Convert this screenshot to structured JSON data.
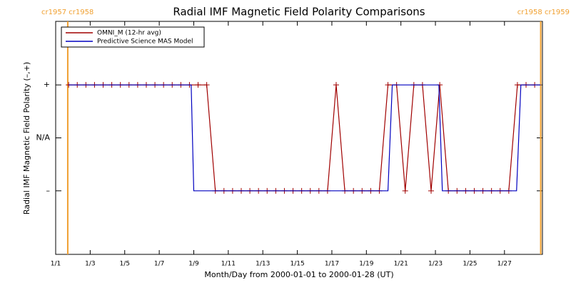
{
  "chart_data": {
    "type": "line",
    "title": "Radial IMF Magnetic Field Polarity Comparisons",
    "xlabel": "Month/Day from 2000-01-01 to 2000-01-28 (UT)",
    "ylabel": "Radial IMF Magnetic Field Polarity (–,+)",
    "xlim": [
      1,
      29.2
    ],
    "xticks": [
      {
        "value": 1,
        "label": "1/1"
      },
      {
        "value": 3,
        "label": "1/3"
      },
      {
        "value": 5,
        "label": "1/5"
      },
      {
        "value": 7,
        "label": "1/7"
      },
      {
        "value": 9,
        "label": "1/9"
      },
      {
        "value": 11,
        "label": "1/11"
      },
      {
        "value": 13,
        "label": "1/13"
      },
      {
        "value": 15,
        "label": "1/15"
      },
      {
        "value": 17,
        "label": "1/17"
      },
      {
        "value": 19,
        "label": "1/19"
      },
      {
        "value": 21,
        "label": "1/21"
      },
      {
        "value": 23,
        "label": "1/23"
      },
      {
        "value": 25,
        "label": "1/25"
      },
      {
        "value": 27,
        "label": "1/27"
      }
    ],
    "ylim": [
      -2.2,
      2.2
    ],
    "yticks": [
      {
        "value": 1,
        "label": "+"
      },
      {
        "value": 0,
        "label": "N/A"
      },
      {
        "value": -1,
        "label": "–"
      }
    ],
    "boundaries": [
      {
        "x": 1.7,
        "label": "cr1957 cr1958"
      },
      {
        "x": 29.1,
        "label": "cr1958 cr1959"
      }
    ],
    "boundary_color": "#f0a030",
    "legend": "upper left",
    "series": [
      {
        "name": "OMNI_M (12-hr avg)",
        "color": "#a00000",
        "marker": "+",
        "x": [
          1.75,
          2.25,
          2.75,
          3.25,
          3.75,
          4.25,
          4.75,
          5.25,
          5.75,
          6.25,
          6.75,
          7.25,
          7.75,
          8.25,
          8.75,
          9.25,
          9.75,
          10.25,
          10.75,
          11.25,
          11.75,
          12.25,
          12.75,
          13.25,
          13.75,
          14.25,
          14.75,
          15.25,
          15.75,
          16.25,
          16.75,
          17.25,
          17.75,
          18.25,
          18.75,
          19.25,
          19.75,
          20.25,
          20.75,
          21.25,
          21.75,
          22.25,
          22.75,
          23.25,
          23.75,
          24.25,
          24.75,
          25.25,
          25.75,
          26.25,
          26.75,
          27.25,
          27.75,
          28.25,
          28.75
        ],
        "values": [
          1,
          1,
          1,
          1,
          1,
          1,
          1,
          1,
          1,
          1,
          1,
          1,
          1,
          1,
          1,
          1,
          1,
          -1,
          -1,
          -1,
          -1,
          -1,
          -1,
          -1,
          -1,
          -1,
          -1,
          -1,
          -1,
          -1,
          -1,
          1,
          -1,
          -1,
          -1,
          -1,
          -1,
          1,
          1,
          -1,
          1,
          1,
          -1,
          1,
          -1,
          -1,
          -1,
          -1,
          -1,
          -1,
          -1,
          -1,
          1,
          1,
          1
        ]
      },
      {
        "name": "Predictive Science MAS Model",
        "color": "#0000c0",
        "x": [
          1.75,
          8.85,
          9.0,
          20.25,
          20.5,
          23.2,
          23.4,
          27.7,
          27.95,
          29.1
        ],
        "values": [
          1,
          1,
          -1,
          -1,
          1,
          1,
          -1,
          -1,
          1,
          1
        ]
      }
    ]
  }
}
